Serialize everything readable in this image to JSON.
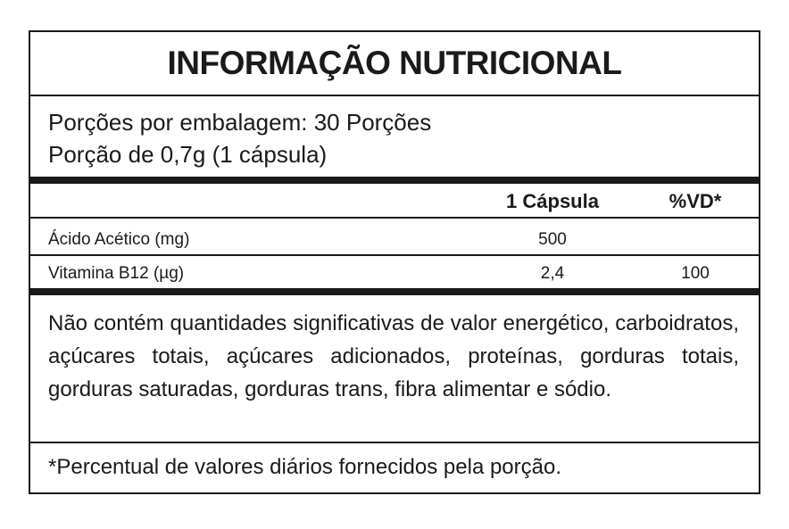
{
  "title": "INFORMAÇÃO NUTRICIONAL",
  "serving": {
    "per_package": "Porções por embalagem: 30 Porções",
    "portion": "Porção de 0,7g (1 cápsula)"
  },
  "table": {
    "headers": [
      "",
      "1 Cápsula",
      "%VD*"
    ],
    "rows": [
      {
        "name": "Ácido Acético (mg)",
        "amount": "500",
        "dv": ""
      },
      {
        "name": "Vitamina B12 (µg)",
        "amount": "2,4",
        "dv": "100"
      }
    ]
  },
  "note": "Não contém quantidades significativas de valor energético, carboidratos, açúcares totais, açúcares adicionados, proteínas, gorduras totais, gorduras saturadas, gorduras trans, fibra alimentar e sódio.",
  "footnote": "*Percentual de valores diários fornecidos pela porção."
}
